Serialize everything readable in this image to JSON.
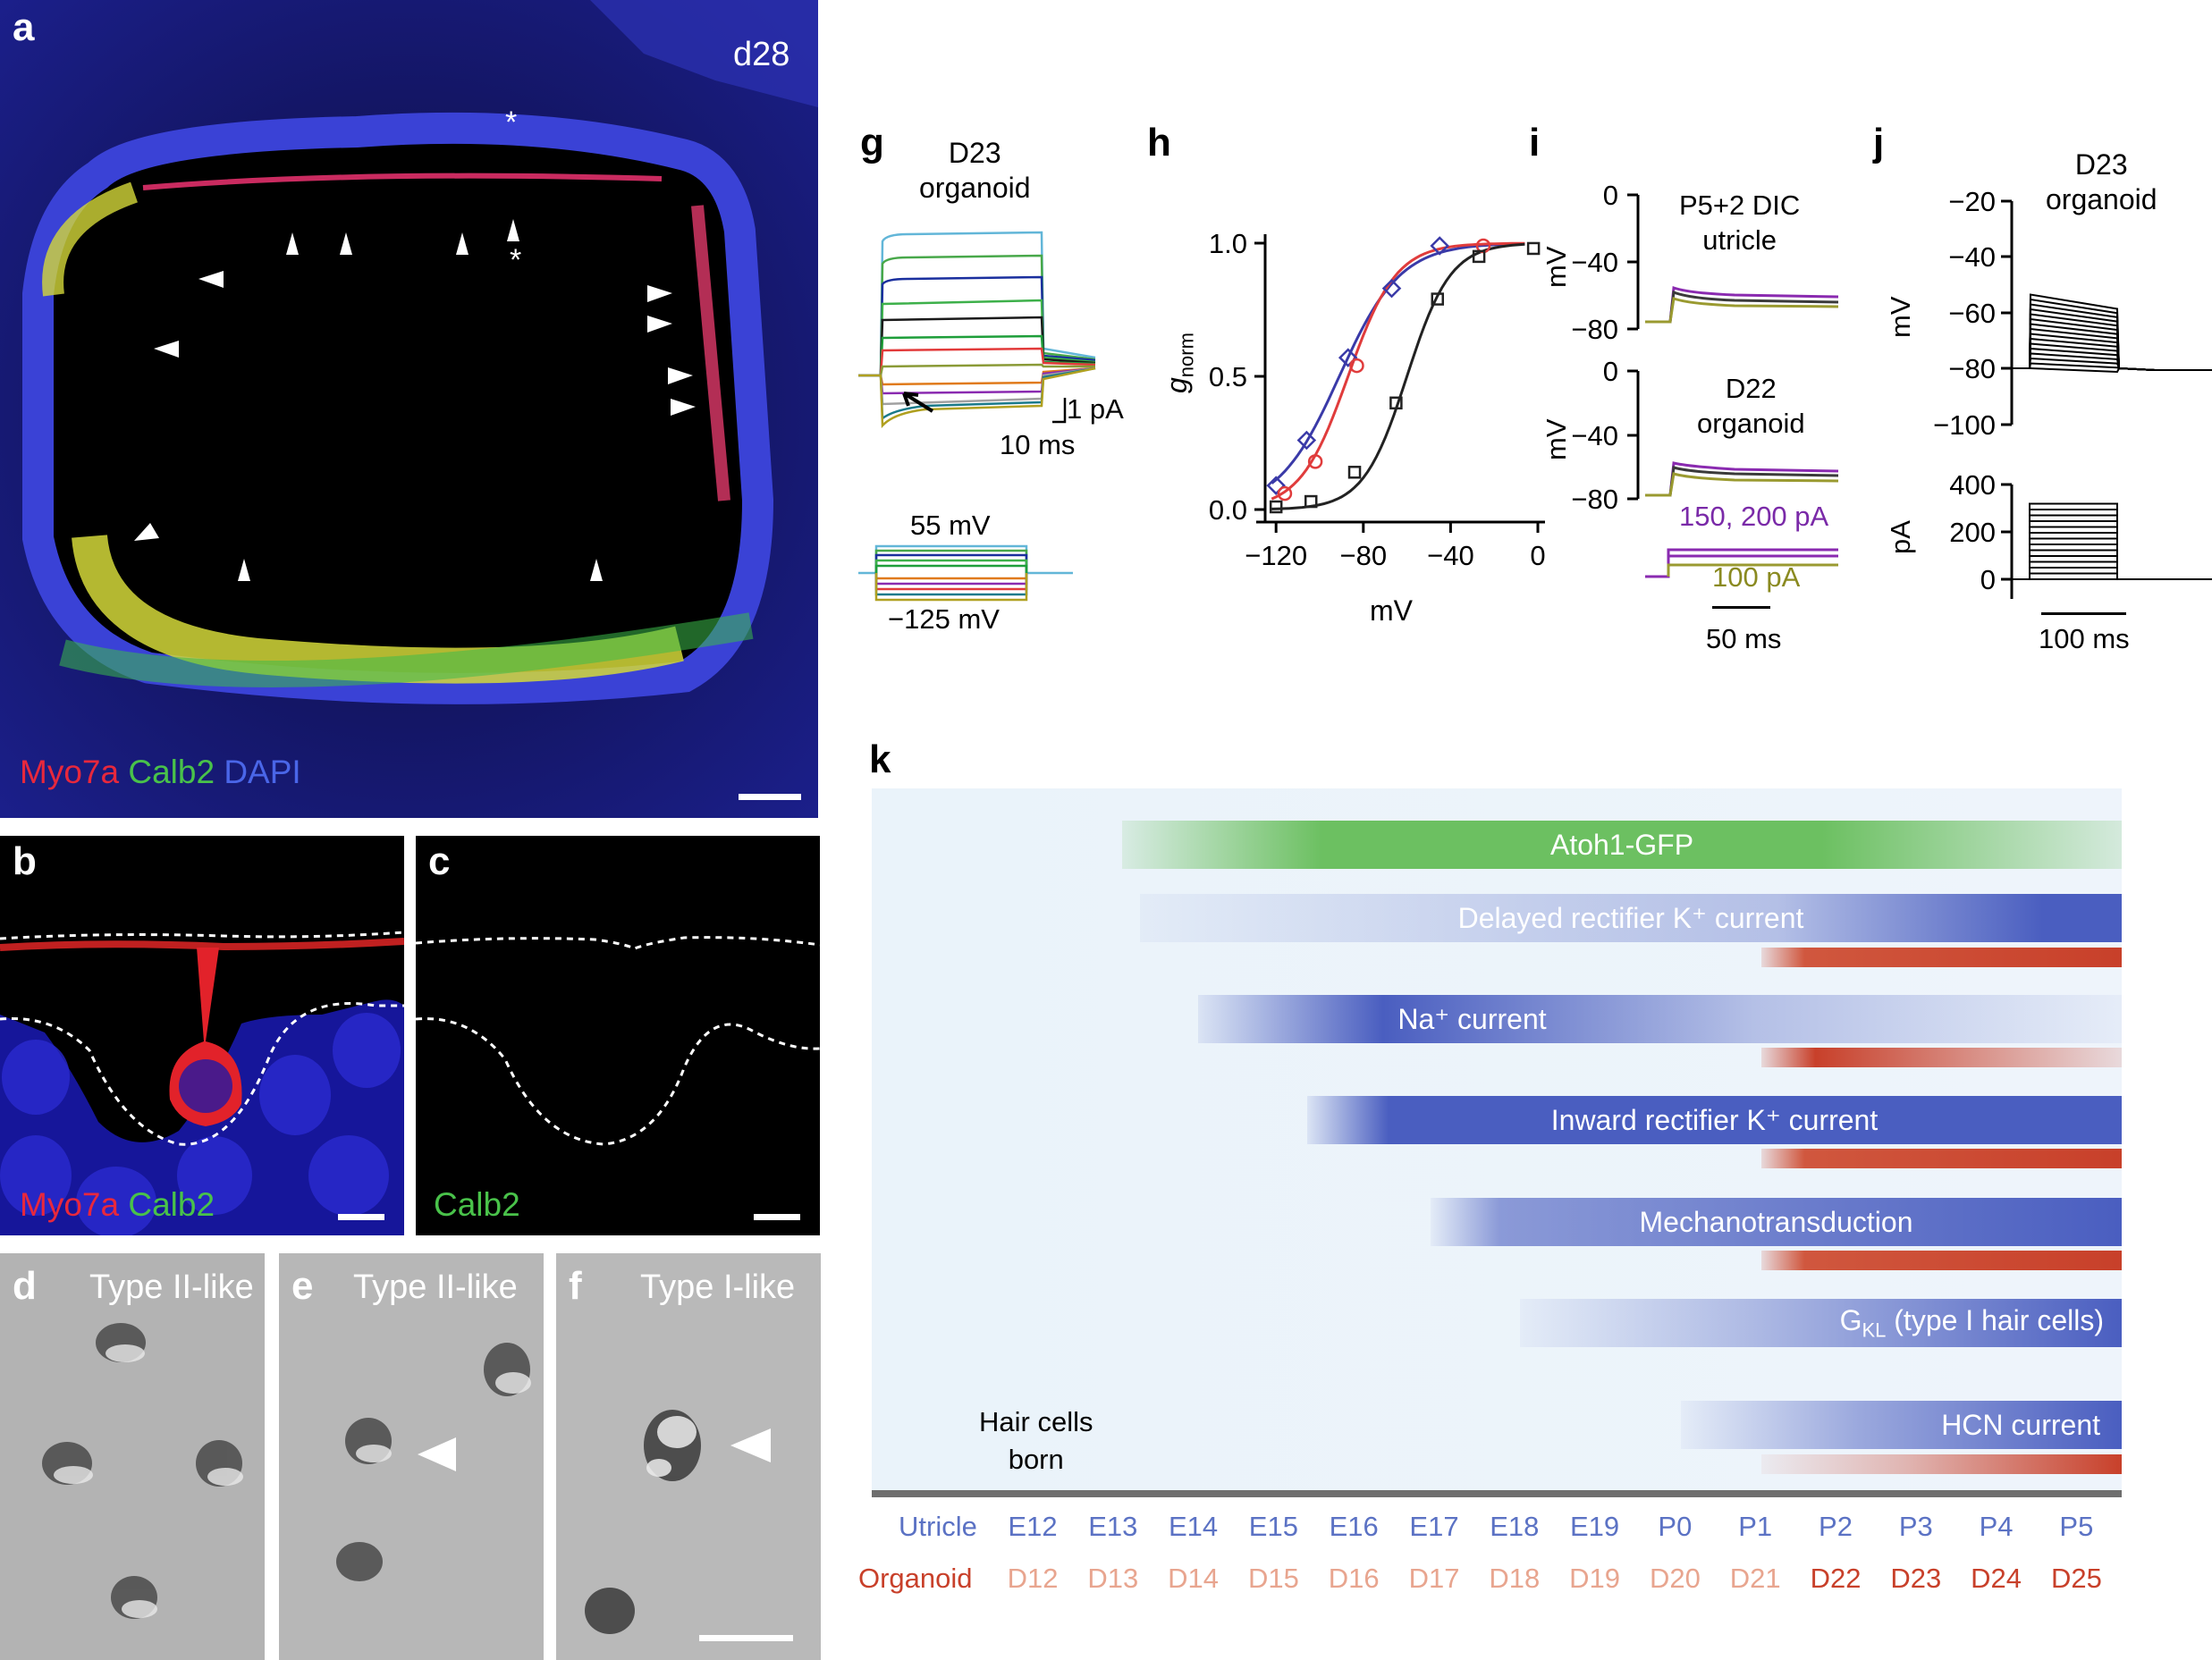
{
  "figure": {
    "panels": {
      "a": {
        "label": "a",
        "timepoint": "d28",
        "stain_myo7a": "Myo7a",
        "stain_calb2": "Calb2",
        "stain_dapi": "DAPI",
        "asterisk": "*"
      },
      "b": {
        "label": "b",
        "stain_myo7a": "Myo7a",
        "stain_calb2": "Calb2"
      },
      "c": {
        "label": "c",
        "stain_calb2": "Calb2"
      },
      "d": {
        "label": "d",
        "title": "Type II-like"
      },
      "e": {
        "label": "e",
        "title": "Type II-like"
      },
      "f": {
        "label": "f",
        "title": "Type I-like"
      },
      "g": {
        "label": "g",
        "title_line1": "D23",
        "title_line2": "organoid",
        "scale_current": "1 pA",
        "scale_time": "10 ms",
        "step_top": "55 mV",
        "step_bottom": "−125 mV"
      },
      "h": {
        "label": "h",
        "ylabel_main": "g",
        "ylabel_sub": "norm",
        "xlabel": "mV"
      },
      "i": {
        "label": "i",
        "trace1_line1": "P5+2 DIC",
        "trace1_line2": "utricle",
        "trace2_line1": "D22",
        "trace2_line2": "organoid",
        "ylabel": "mV",
        "current_high": "150, 200 pA",
        "current_low": "100 pA",
        "scale_time": "50 ms",
        "ticks": [
          "0",
          "−40",
          "−80"
        ]
      },
      "j": {
        "label": "j",
        "title_line1": "D23",
        "title_line2": "organoid",
        "ylabel_top": "mV",
        "ylabel_bottom": "pA",
        "ticks_top": [
          "−20",
          "−40",
          "−60",
          "−80",
          "−100"
        ],
        "ticks_bottom": [
          "400",
          "200",
          "0"
        ],
        "scale_time": "100 ms"
      },
      "k": {
        "label": "k",
        "hair_cells_line1": "Hair cells",
        "hair_cells_line2": "born"
      }
    },
    "chart_data": {
      "type": "line",
      "xlabel": "mV",
      "ylabel": "g_norm",
      "xlim": [
        -125,
        0
      ],
      "ylim": [
        0,
        1
      ],
      "xticks": [
        "−120",
        "−80",
        "−40",
        "0"
      ],
      "yticks": [
        "0.0",
        "0.5",
        "1.0"
      ],
      "series": [
        {
          "marker": "diamond",
          "color": "#3a3aa8",
          "x": [
            -120,
            -106,
            -87,
            -67,
            -45
          ],
          "y": [
            0.09,
            0.26,
            0.57,
            0.83,
            0.99
          ]
        },
        {
          "marker": "circle",
          "color": "#e03c3c",
          "x": [
            -116,
            -102,
            -83,
            -25
          ],
          "y": [
            0.06,
            0.18,
            0.54,
            0.99
          ]
        },
        {
          "marker": "square",
          "color": "#222222",
          "x": [
            -120,
            -104,
            -84,
            -65,
            -46,
            -27,
            -2
          ],
          "y": [
            0.01,
            0.03,
            0.14,
            0.4,
            0.79,
            0.95,
            0.98
          ]
        }
      ]
    },
    "timeline": {
      "bars": [
        {
          "label": "Atoh1-GFP",
          "color": "#6cc061",
          "start_stage": "E13",
          "end_stage": "P5"
        },
        {
          "label": "Delayed rectifier K⁺ current",
          "color": "#4a5ec0",
          "start_stage": "E13",
          "end_stage": "P5",
          "organoid_onset": "D22"
        },
        {
          "label": "Na⁺ current",
          "color": "#4a5ec0",
          "start_stage": "E14",
          "end_stage": "P5",
          "organoid_onset": "D22"
        },
        {
          "label": "Inward rectifier K⁺ current",
          "color": "#4a5ec0",
          "start_stage": "E16",
          "end_stage": "P5",
          "organoid_onset": "D22"
        },
        {
          "label": "Mechanotransduction",
          "color": "#4a5ec0",
          "start_stage": "E17",
          "end_stage": "P5",
          "organoid_onset": "D22"
        },
        {
          "label_main": "G",
          "label_sub": "KL",
          "label_rest": " (type I hair cells)",
          "color": "#4a5ec0",
          "start_stage": "E18",
          "end_stage": "P5"
        },
        {
          "label": "HCN current",
          "color": "#4a5ec0",
          "start_stage": "E19",
          "end_stage": "P5",
          "organoid_onset": "D22"
        }
      ],
      "utricle_label": "Utricle",
      "organoid_label": "Organoid",
      "utricle_stages": [
        "E12",
        "E13",
        "E14",
        "E15",
        "E16",
        "E17",
        "E18",
        "E19",
        "P0",
        "P1",
        "P2",
        "P3",
        "P4",
        "P5"
      ],
      "organoid_stages": [
        "D12",
        "D13",
        "D14",
        "D15",
        "D16",
        "D17",
        "D18",
        "D19",
        "D20",
        "D21",
        "D22",
        "D23",
        "D24",
        "D25"
      ],
      "colors": {
        "utricle": "#5b72c4",
        "organoid_light": "#e8a58f",
        "organoid_dark": "#c8402a"
      }
    }
  }
}
